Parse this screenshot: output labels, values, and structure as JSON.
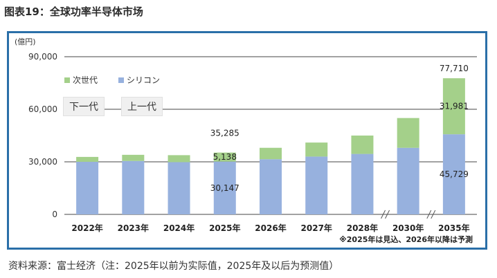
{
  "figure_title": "图表19：全球功率半导体市场",
  "source_note": "资料来源：富士经济（注：2025年以前为实际值，2025年及以后为预测值）",
  "overlay_tags": [
    "下一代",
    "上一代"
  ],
  "colors": {
    "frame": "#2a6fa8",
    "silicon": "#97b1de",
    "next_gen": "#a4d08a",
    "grid": "#444444"
  },
  "chart_data": {
    "type": "bar",
    "stacked": true,
    "unit_label": "(億円)",
    "ylim": [
      0,
      90000
    ],
    "y_ticks": [
      "0",
      "30,000",
      "60,000",
      "90,000"
    ],
    "y_tick_values": [
      0,
      30000,
      60000,
      90000
    ],
    "grid": true,
    "legend_position": "top-left",
    "categories": [
      "2022年",
      "2023年",
      "2024年",
      "2025年",
      "2026年",
      "2027年",
      "2028年",
      "2030年",
      "2035年"
    ],
    "axis_breaks_after": [
      "2028年",
      "2030年"
    ],
    "series": [
      {
        "name": "シリコン",
        "color": "#97b1de",
        "values": [
          30000,
          30500,
          29800,
          30147,
          31500,
          33000,
          34500,
          38000,
          45729
        ]
      },
      {
        "name": "次世代",
        "color": "#a4d08a",
        "values": [
          2800,
          3500,
          4000,
          5138,
          6500,
          8000,
          10500,
          17000,
          31981
        ]
      }
    ],
    "data_labels": [
      {
        "category": "2025年",
        "text": "35,285",
        "position": "above"
      },
      {
        "category": "2025年",
        "text": "5,138",
        "position": "next_gen"
      },
      {
        "category": "2025年",
        "text": "30,147",
        "position": "silicon"
      },
      {
        "category": "2035年",
        "text": "77,710",
        "position": "above"
      },
      {
        "category": "2035年",
        "text": "31,981",
        "position": "next_gen"
      },
      {
        "category": "2035年",
        "text": "45,729",
        "position": "silicon"
      }
    ],
    "footnote": "※2025年は見込、2026年以降は予測"
  }
}
